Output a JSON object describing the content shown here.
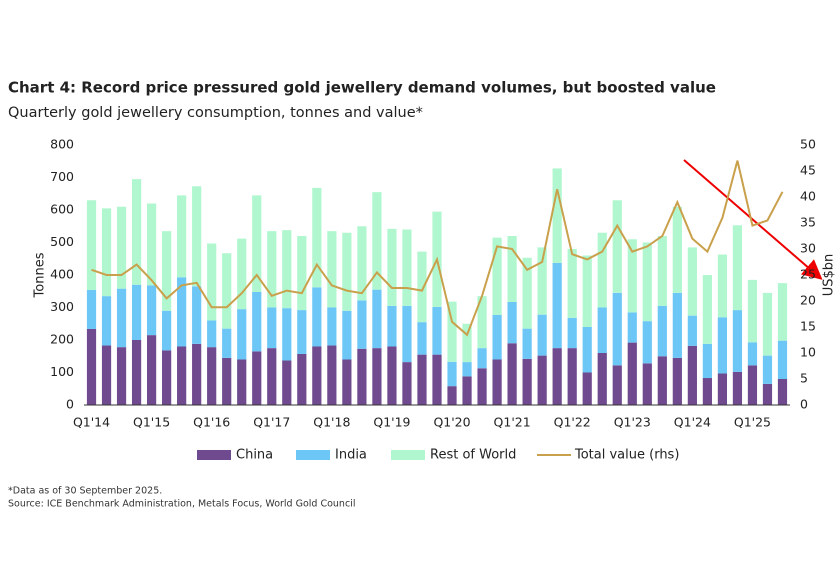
{
  "chart_data": {
    "type": "bar",
    "title": "Chart 4: Record price pressured gold jewellery demand volumes, but boosted value",
    "subtitle": "Quarterly gold jewellery consumption, tonnes and value*",
    "y_label": "Tonnes",
    "y2_label": "US$bn",
    "categories": [
      "Q1'14",
      null,
      null,
      null,
      "Q1'15",
      null,
      null,
      null,
      "Q1'16",
      null,
      null,
      null,
      "Q1'17",
      null,
      null,
      null,
      "Q1'18",
      null,
      null,
      null,
      "Q1'19",
      null,
      null,
      null,
      "Q1'20",
      null,
      null,
      null,
      "Q1'21",
      null,
      null,
      null,
      "Q1'22",
      null,
      null,
      null,
      "Q1'23",
      null,
      null,
      null,
      "Q1'24",
      null,
      null,
      null,
      "Q1'25",
      null,
      null
    ],
    "stacked": true,
    "series": [
      {
        "name": "China",
        "color": "#6f4a8e",
        "values": [
          234,
          183,
          178,
          200,
          215,
          168,
          180,
          188,
          178,
          145,
          140,
          165,
          175,
          137,
          157,
          180,
          183,
          140,
          173,
          175,
          180,
          132,
          155,
          155,
          58,
          88,
          113,
          140,
          190,
          142,
          152,
          175,
          175,
          100,
          160,
          122,
          192,
          128,
          150,
          145,
          182,
          83,
          97,
          102,
          122,
          65,
          80
        ]
      },
      {
        "name": "India",
        "color": "#6cc7f6",
        "values": [
          120,
          152,
          180,
          170,
          153,
          122,
          213,
          177,
          82,
          90,
          155,
          183,
          125,
          161,
          135,
          182,
          117,
          150,
          149,
          180,
          125,
          173,
          100,
          147,
          75,
          44,
          62,
          137,
          127,
          93,
          126,
          262,
          93,
          140,
          140,
          223,
          93,
          130,
          155,
          200,
          93,
          105,
          173,
          190,
          71,
          87,
          118
        ]
      },
      {
        "name": "Rest of World",
        "color": "#b0f7d0",
        "values": [
          276,
          270,
          252,
          325,
          252,
          245,
          252,
          308,
          237,
          232,
          217,
          297,
          235,
          240,
          228,
          306,
          235,
          240,
          228,
          300,
          237,
          235,
          217,
          293,
          185,
          118,
          160,
          238,
          203,
          218,
          207,
          291,
          212,
          220,
          230,
          285,
          225,
          242,
          215,
          265,
          210,
          212,
          193,
          261,
          192,
          193,
          177
        ]
      },
      {
        "name": "Total value (rhs)",
        "type": "line",
        "axis": "y2",
        "color": "#c9a04b",
        "values": [
          26,
          25,
          25,
          27,
          24,
          20.5,
          23,
          23.5,
          18.8,
          18.8,
          21.5,
          25,
          21,
          22,
          21.5,
          27,
          23,
          22,
          21.5,
          25.5,
          22.5,
          22.5,
          22,
          28,
          16,
          13.5,
          21,
          30.5,
          30,
          26,
          27.5,
          41.5,
          29,
          28,
          29.5,
          34.5,
          29.5,
          30.5,
          32.5,
          39,
          32,
          29.5,
          36,
          47,
          34.5,
          35.5,
          41
        ]
      }
    ],
    "ylim": [
      0,
      800
    ],
    "yticks": [
      0,
      100,
      200,
      300,
      400,
      500,
      600,
      700,
      800
    ],
    "y2lim": [
      0,
      50
    ],
    "y2ticks": [
      0,
      5,
      10,
      15,
      20,
      25,
      30,
      35,
      40,
      45,
      50
    ],
    "notes": [
      "*Data as of 30 September 2025.",
      "Source: ICE Benchmark Administration, Metals Focus, World Gold Council"
    ]
  }
}
